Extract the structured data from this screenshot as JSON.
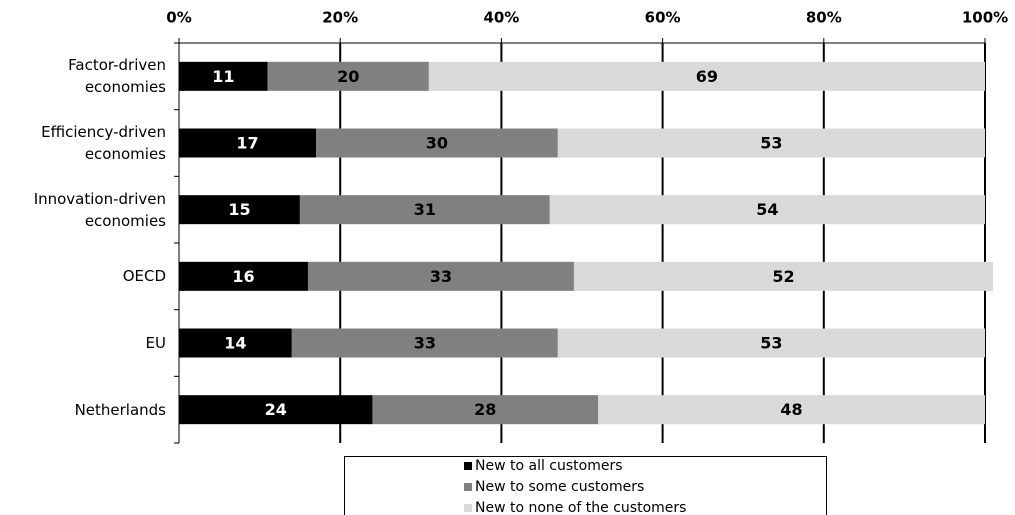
{
  "chart_data": {
    "type": "stacked-bar-horizontal",
    "categories": [
      "Factor-driven economies",
      "Efficiency-driven economies",
      "Innovation-driven economies",
      "OECD",
      "EU",
      "Netherlands"
    ],
    "series": [
      {
        "name": "New to all customers",
        "color": "#000000",
        "values": [
          11,
          17,
          15,
          16,
          14,
          24
        ]
      },
      {
        "name": "New to some customers",
        "color": "#808080",
        "values": [
          20,
          30,
          31,
          33,
          33,
          28
        ]
      },
      {
        "name": "New to none of the customers",
        "color": "#d9d9d9",
        "values": [
          69,
          53,
          54,
          52,
          53,
          48
        ]
      }
    ],
    "xlim": [
      0,
      100
    ],
    "xticks": [
      {
        "value": 0,
        "label": "0%"
      },
      {
        "value": 20,
        "label": "20%"
      },
      {
        "value": 40,
        "label": "40%"
      },
      {
        "value": 60,
        "label": "60%"
      },
      {
        "value": 80,
        "label": "80%"
      },
      {
        "value": 100,
        "label": "100%"
      }
    ],
    "grid": true,
    "legend": "bottom"
  }
}
